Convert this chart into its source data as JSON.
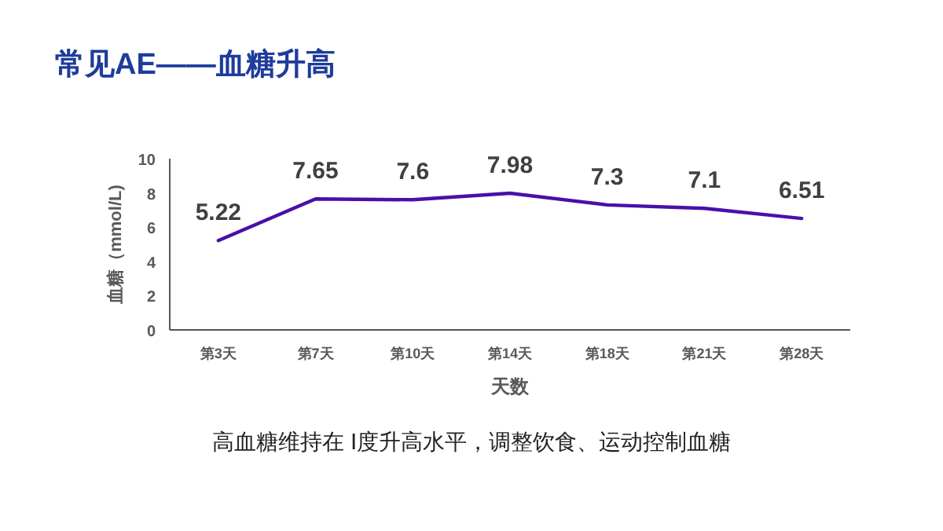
{
  "chart_data": {
    "type": "line",
    "title": "常见AE——血糖升高",
    "xlabel": "天数",
    "ylabel": "血糖（mmol/L)",
    "categories": [
      "第3天",
      "第7天",
      "第10天",
      "第14天",
      "第18天",
      "第21天",
      "第28天"
    ],
    "series": [
      {
        "color": "#4a0fa8",
        "values": [
          5.22,
          7.65,
          7.6,
          7.98,
          7.3,
          7.1,
          6.51
        ]
      }
    ],
    "ylim": [
      0,
      10
    ],
    "yticks": [
      0,
      2,
      4,
      6,
      8,
      10
    ],
    "data_labels": true,
    "grid": false,
    "marker": "none",
    "annotations": [
      "高血糖维持在 Ⅰ度升高水平，调整饮食、运动控制血糖"
    ]
  }
}
